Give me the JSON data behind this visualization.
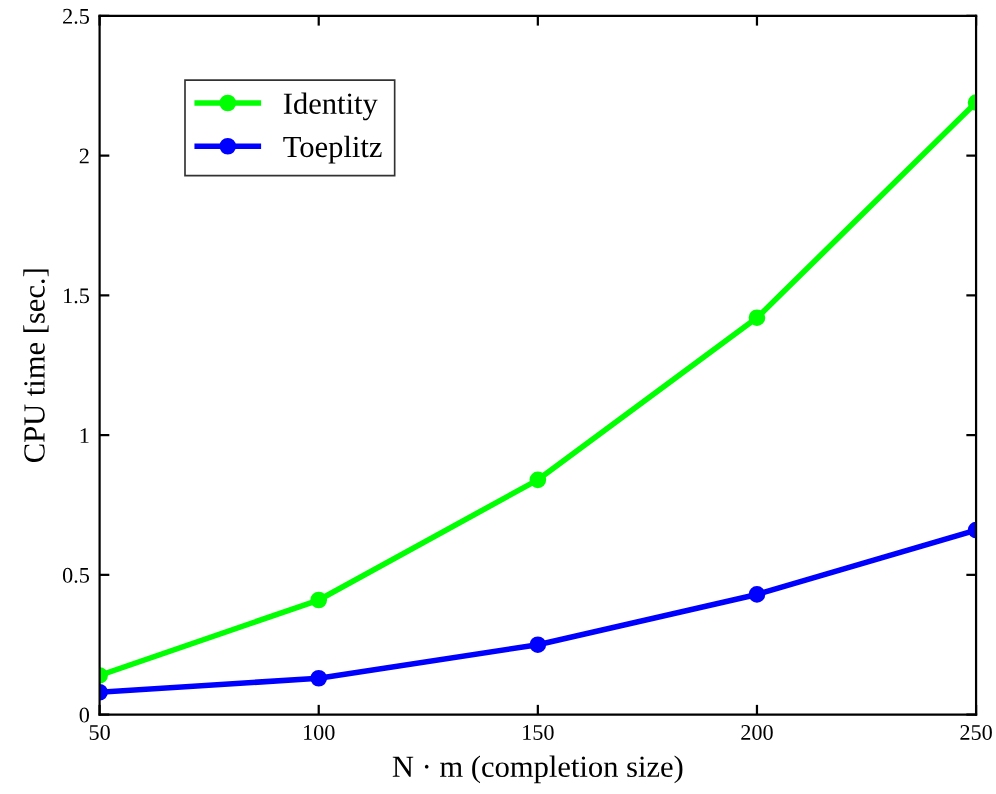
{
  "chart_data": {
    "type": "line",
    "xlabel": "N · m (completion size)",
    "ylabel": "CPU time [sec.]",
    "x": [
      50,
      100,
      150,
      200,
      250
    ],
    "series": [
      {
        "name": "Identity",
        "color": "#00ff00",
        "values": [
          0.14,
          0.41,
          0.84,
          1.42,
          2.19
        ]
      },
      {
        "name": "Toeplitz",
        "color": "#0000ff",
        "values": [
          0.08,
          0.13,
          0.25,
          0.43,
          0.66
        ]
      }
    ],
    "xlim": [
      50,
      250
    ],
    "ylim": [
      0,
      2.5
    ],
    "xticks": [
      50,
      100,
      150,
      200,
      250
    ],
    "yticks": [
      0,
      0.5,
      1,
      1.5,
      2,
      2.5
    ],
    "marker": "circle",
    "line_style": "solid",
    "legend": "top left"
  }
}
